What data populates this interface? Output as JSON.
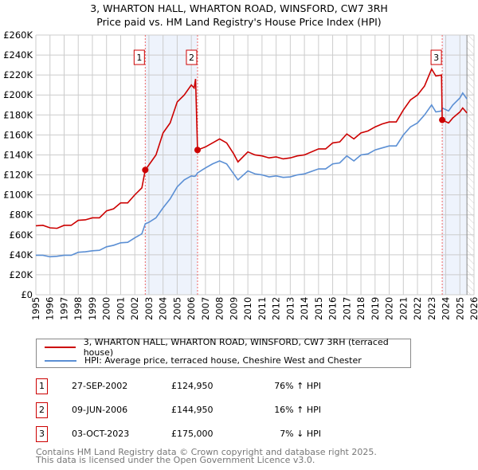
{
  "title": "3, WHARTON HALL, WHARTON ROAD, WINSFORD, CW7 3RH",
  "subtitle": "Price paid vs. HM Land Registry's House Price Index (HPI)",
  "chart_data": {
    "type": "line",
    "title": "3, WHARTON HALL, WHARTON ROAD, WINSFORD, CW7 3RH — Price paid vs. HM Land Registry's House Price Index (HPI)",
    "xlim": [
      1995,
      2026
    ],
    "ylim": [
      0,
      260000
    ],
    "grid": true,
    "x_ticks": [
      "1995",
      "1996",
      "1997",
      "1998",
      "1999",
      "2000",
      "2001",
      "2002",
      "2003",
      "2004",
      "2005",
      "2006",
      "2007",
      "2008",
      "2009",
      "2010",
      "2011",
      "2012",
      "2013",
      "2014",
      "2015",
      "2016",
      "2017",
      "2018",
      "2019",
      "2020",
      "2021",
      "2022",
      "2023",
      "2024",
      "2025",
      "2026"
    ],
    "y_ticks": [
      {
        "v": 0,
        "l": "£0"
      },
      {
        "v": 20000,
        "l": "£20K"
      },
      {
        "v": 40000,
        "l": "£40K"
      },
      {
        "v": 60000,
        "l": "£60K"
      },
      {
        "v": 80000,
        "l": "£80K"
      },
      {
        "v": 100000,
        "l": "£100K"
      },
      {
        "v": 120000,
        "l": "£120K"
      },
      {
        "v": 140000,
        "l": "£140K"
      },
      {
        "v": 160000,
        "l": "£160K"
      },
      {
        "v": 180000,
        "l": "£180K"
      },
      {
        "v": 200000,
        "l": "£200K"
      },
      {
        "v": 220000,
        "l": "£220K"
      },
      {
        "v": 240000,
        "l": "£240K"
      },
      {
        "v": 260000,
        "l": "£260K"
      }
    ],
    "shaded_ranges": [
      [
        2002.74,
        2006.44
      ],
      [
        2023.75,
        2025.5
      ]
    ],
    "hatched_range": [
      2025.5,
      2026
    ],
    "series": [
      {
        "name": "3, WHARTON HALL, WHARTON ROAD, WINSFORD, CW7 3RH (terraced house)",
        "color": "#cc0000",
        "x": [
          1995,
          1995.5,
          1996,
          1996.5,
          1997,
          1997.5,
          1998,
          1998.5,
          1999,
          1999.5,
          2000,
          2000.5,
          2001,
          2001.5,
          2002,
          2002.5,
          2002.74,
          2003,
          2003.5,
          2004,
          2004.5,
          2005,
          2005.5,
          2006,
          2006.2,
          2006.3,
          2006.44,
          2007,
          2007.5,
          2008,
          2008.5,
          2009,
          2009.3,
          2010,
          2010.5,
          2011,
          2011.5,
          2012,
          2012.5,
          2013,
          2013.5,
          2014,
          2015,
          2015.5,
          2016,
          2016.5,
          2017,
          2017.5,
          2018,
          2018.5,
          2019,
          2019.5,
          2020,
          2020.5,
          2021,
          2021.5,
          2022,
          2022.5,
          2023,
          2023.3,
          2023.7,
          2023.75,
          2024.2,
          2024.5,
          2025,
          2025.2,
          2025.5
        ],
        "y": [
          69000,
          69500,
          67000,
          66500,
          69500,
          69500,
          74500,
          75000,
          77000,
          77000,
          84000,
          86000,
          92000,
          92000,
          100000,
          107000,
          124950,
          130000,
          140000,
          162000,
          172000,
          193000,
          200000,
          210000,
          207000,
          216000,
          144950,
          148000,
          152000,
          156000,
          152000,
          141000,
          133000,
          143000,
          140000,
          139000,
          137000,
          138000,
          136000,
          137000,
          139000,
          140000,
          146000,
          146000,
          152000,
          153000,
          161000,
          156000,
          162000,
          164000,
          168000,
          171000,
          173000,
          173000,
          185000,
          195000,
          200000,
          209000,
          226000,
          219000,
          220000,
          175000,
          172000,
          177000,
          183000,
          187000,
          182000
        ]
      },
      {
        "name": "HPI: Average price, terraced house, Cheshire West and Chester",
        "color": "#5b8fd4",
        "x": [
          1995,
          1995.5,
          1996,
          1996.5,
          1997,
          1997.5,
          1998,
          1998.5,
          1999,
          1999.5,
          2000,
          2000.5,
          2001,
          2001.5,
          2002,
          2002.5,
          2002.74,
          2003,
          2003.5,
          2004,
          2004.5,
          2005,
          2005.5,
          2006,
          2006.2,
          2006.3,
          2006.44,
          2007,
          2007.5,
          2008,
          2008.5,
          2009,
          2009.3,
          2010,
          2010.5,
          2011,
          2011.5,
          2012,
          2012.5,
          2013,
          2013.5,
          2014,
          2015,
          2015.5,
          2016,
          2016.5,
          2017,
          2017.5,
          2018,
          2018.5,
          2019,
          2019.5,
          2020,
          2020.5,
          2021,
          2021.5,
          2022,
          2022.5,
          2023,
          2023.3,
          2023.7,
          2023.75,
          2024.2,
          2024.5,
          2025,
          2025.2,
          2025.5
        ],
        "y": [
          39500,
          39500,
          38000,
          38500,
          39500,
          39500,
          42500,
          43000,
          44000,
          44500,
          48000,
          49500,
          52000,
          52500,
          57000,
          61000,
          71000,
          72500,
          77000,
          87000,
          96000,
          108000,
          115000,
          119000,
          118500,
          119000,
          122000,
          127000,
          131000,
          134000,
          131000,
          121000,
          115000,
          124000,
          121000,
          120000,
          118000,
          119000,
          117500,
          118000,
          120000,
          121000,
          126000,
          126000,
          131000,
          132000,
          139000,
          134000,
          140000,
          141000,
          145000,
          147000,
          149000,
          149000,
          160000,
          168000,
          172000,
          180000,
          190000,
          183000,
          184000,
          187000,
          184000,
          190000,
          197000,
          202000,
          196000
        ]
      }
    ],
    "sales": [
      {
        "id": "1",
        "x": 2002.74,
        "y": 124950
      },
      {
        "id": "2",
        "x": 2006.44,
        "y": 144950
      },
      {
        "id": "3",
        "x": 2023.75,
        "y": 175000
      }
    ]
  },
  "legend": {
    "price_label": "3, WHARTON HALL, WHARTON ROAD, WINSFORD, CW7 3RH (terraced house)",
    "hpi_label": "HPI: Average price, terraced house, Cheshire West and Chester"
  },
  "transactions": [
    {
      "id": "1",
      "date": "27-SEP-2002",
      "price": "£124,950",
      "hpi": "76% ↑ HPI"
    },
    {
      "id": "2",
      "date": "09-JUN-2006",
      "price": "£144,950",
      "hpi": "16% ↑ HPI"
    },
    {
      "id": "3",
      "date": "03-OCT-2023",
      "price": "£175,000",
      "hpi": "7% ↓ HPI"
    }
  ],
  "footer": {
    "line1": "Contains HM Land Registry data © Crown copyright and database right 2025.",
    "line2": "This data is licensed under the Open Government Licence v3.0."
  }
}
